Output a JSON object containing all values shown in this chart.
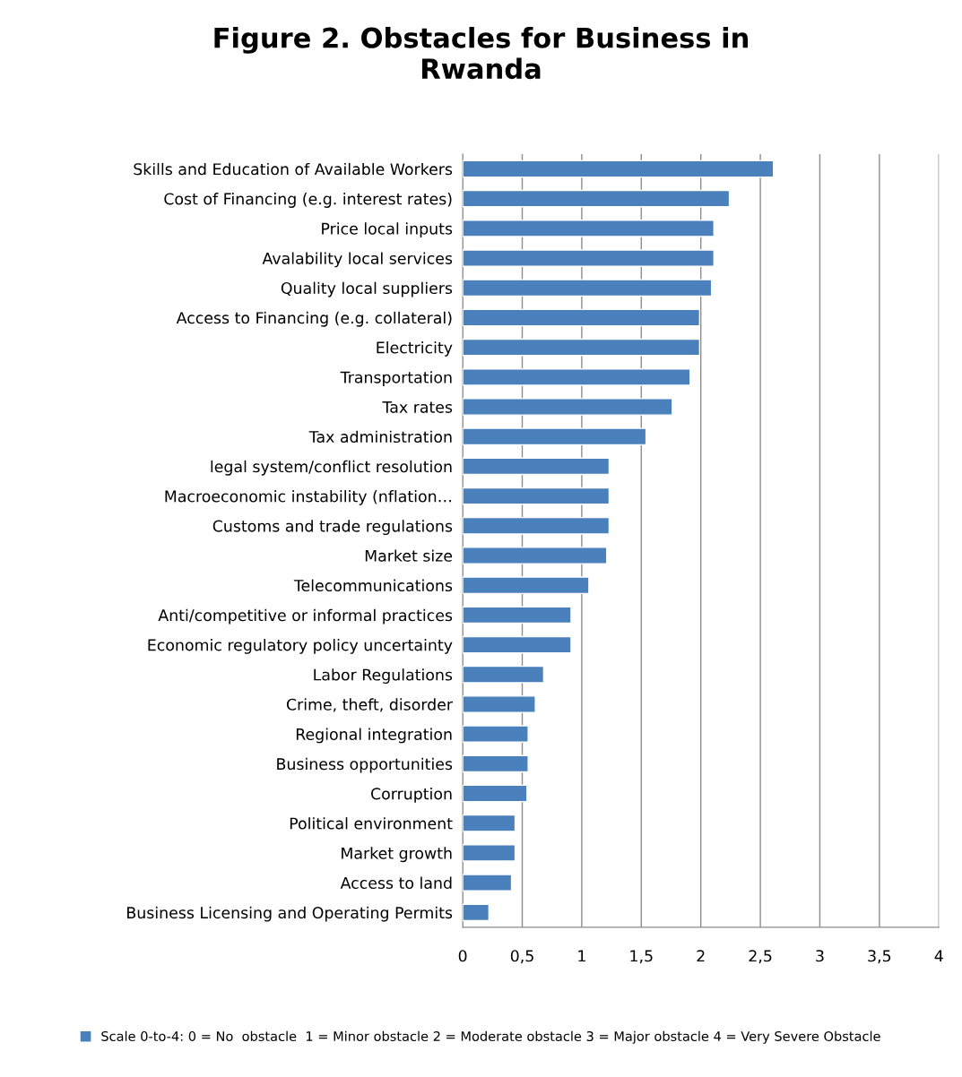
{
  "chart_data": {
    "type": "bar",
    "orientation": "horizontal",
    "title": "Figure 2. Obstacles for Business in\nRwanda",
    "categories": [
      "Skills and Education of Available Workers",
      "Cost of Financing (e.g. interest rates)",
      "Price local inputs",
      "Avalability local services",
      "Quality local suppliers",
      "Access to Financing (e.g. collateral)",
      "Electricity",
      "Transportation",
      "Tax rates",
      "Tax administration",
      "legal system/conflict resolution",
      "Macroeconomic instability (nflation…",
      "Customs and trade regulations",
      "Market size",
      "Telecommunications",
      "Anti/competitive or informal practices",
      "Economic regulatory policy uncertainty",
      "Labor Regulations",
      "Crime, theft, disorder",
      "Regional integration",
      "Business opportunities",
      "Corruption",
      "Political environment",
      "Market growth",
      "Access to land",
      "Business Licensing and Operating Permits"
    ],
    "series": [
      {
        "name": "Scale 0-to-4: 0 = No  obstacle  1 = Minor obstacle 2 = Moderate obstacle 3 = Major obstacle 4 = Very Severe Obstacle",
        "color": "#4a81bd",
        "values": [
          2.61,
          2.24,
          2.11,
          2.11,
          2.09,
          1.99,
          1.99,
          1.91,
          1.76,
          1.54,
          1.23,
          1.23,
          1.23,
          1.21,
          1.06,
          0.91,
          0.91,
          0.68,
          0.61,
          0.55,
          0.55,
          0.54,
          0.44,
          0.44,
          0.41,
          0.22
        ]
      }
    ],
    "xlim": [
      0,
      4
    ],
    "xticks": [
      0,
      {
        "value": 0.5,
        "label": "0,5"
      },
      1,
      {
        "value": 1.5,
        "label": "1,5"
      },
      2,
      {
        "value": 2.5,
        "label": "2,5"
      },
      3,
      {
        "value": 3.5,
        "label": "3,5"
      },
      4
    ],
    "grid": "x",
    "legend": "bottom"
  }
}
